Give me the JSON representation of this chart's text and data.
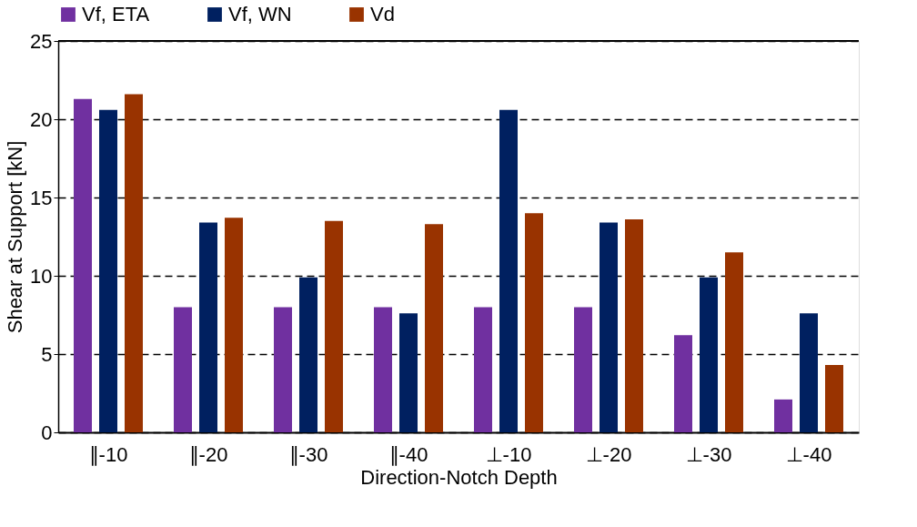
{
  "chart_data": {
    "type": "bar",
    "xlabel": "Direction-Notch Depth",
    "ylabel": "Shear at Support [kN]",
    "categories": [
      "∥-10",
      "∥-20",
      "∥-30",
      "∥-40",
      "⊥-10",
      "⊥-20",
      "⊥-30",
      "⊥-40"
    ],
    "series": [
      {
        "name": "Vf, ETA",
        "color": "#7030a0",
        "values": [
          21.3,
          8.0,
          8.0,
          8.0,
          8.0,
          8.0,
          6.2,
          2.1
        ]
      },
      {
        "name": "Vf, WN",
        "color": "#002060",
        "values": [
          20.6,
          13.4,
          9.9,
          7.6,
          20.6,
          13.4,
          9.9,
          7.6
        ]
      },
      {
        "name": "Vd",
        "color": "#993300",
        "values": [
          21.6,
          13.7,
          13.5,
          13.3,
          14.0,
          13.6,
          11.5,
          4.3
        ]
      }
    ],
    "ylim": [
      0,
      25
    ],
    "yticks": [
      0,
      5,
      10,
      15,
      20,
      25
    ],
    "grid": "y",
    "line_style": "dashed",
    "legend": "top"
  }
}
